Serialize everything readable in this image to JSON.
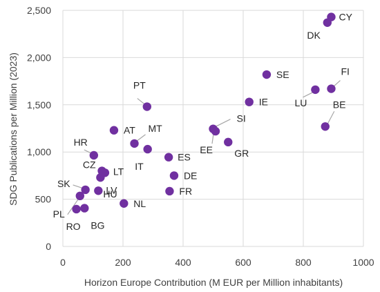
{
  "chart_data": {
    "type": "scatter",
    "xlabel": "Horizon Europe Contribution (M EUR per Million inhabitants)",
    "ylabel": "SDG Publications per Million (2023)",
    "xlim": [
      0,
      1000
    ],
    "ylim": [
      0,
      2500
    ],
    "x_ticks": [
      "0",
      "200",
      "400",
      "600",
      "800",
      "1000"
    ],
    "y_ticks": [
      "0",
      "500",
      "1,000",
      "1,500",
      "2,000",
      "2,500"
    ],
    "grid": "vertical and horizontal",
    "marker_color": "#7030a0",
    "points": [
      {
        "label": "CY",
        "x": 893,
        "y": 2430
      },
      {
        "label": "DK",
        "x": 880,
        "y": 2370
      },
      {
        "label": "SE",
        "x": 678,
        "y": 1820
      },
      {
        "label": "FI",
        "x": 893,
        "y": 1670
      },
      {
        "label": "LU",
        "x": 840,
        "y": 1660
      },
      {
        "label": "IE",
        "x": 620,
        "y": 1530
      },
      {
        "label": "PT",
        "x": 280,
        "y": 1480
      },
      {
        "label": "BE",
        "x": 873,
        "y": 1270
      },
      {
        "label": "SI",
        "x": 500,
        "y": 1245
      },
      {
        "label": "AT",
        "x": 170,
        "y": 1230
      },
      {
        "label": "EE",
        "x": 508,
        "y": 1220
      },
      {
        "label": "GR",
        "x": 550,
        "y": 1105
      },
      {
        "label": "MT",
        "x": 238,
        "y": 1090
      },
      {
        "label": "IT",
        "x": 282,
        "y": 1030
      },
      {
        "label": "HR",
        "x": 103,
        "y": 965
      },
      {
        "label": "ES",
        "x": 352,
        "y": 945
      },
      {
        "label": "CZ",
        "x": 130,
        "y": 800
      },
      {
        "label": "LT",
        "x": 140,
        "y": 780
      },
      {
        "label": "DE",
        "x": 370,
        "y": 750
      },
      {
        "label": "LV",
        "x": 118,
        "y": 590
      },
      {
        "label": "SK",
        "x": 75,
        "y": 600
      },
      {
        "label": "FR",
        "x": 355,
        "y": 585
      },
      {
        "label": "PL",
        "x": 57,
        "y": 535
      },
      {
        "label": "HU",
        "x": 125,
        "y": 730
      },
      {
        "label": "NL",
        "x": 203,
        "y": 455
      },
      {
        "label": "BG",
        "x": 72,
        "y": 405
      },
      {
        "label": "RO",
        "x": 45,
        "y": 395
      }
    ]
  }
}
